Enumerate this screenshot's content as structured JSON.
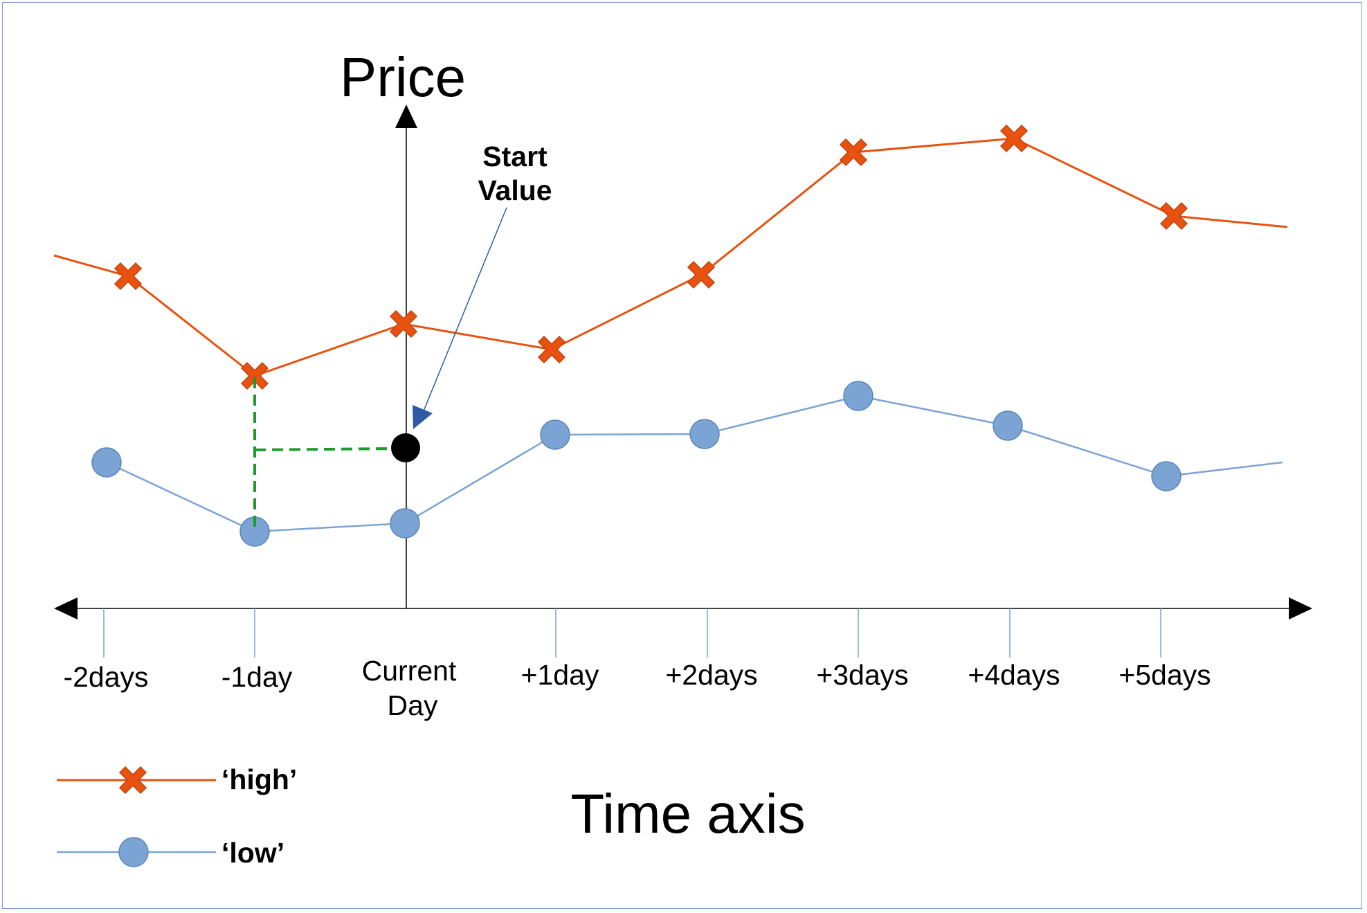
{
  "diagram": {
    "y_axis_title": "Price",
    "x_axis_title": "Time axis",
    "x_ticks": [
      "-2days",
      "-1day",
      "Current Day",
      "+1day",
      "+2days",
      "+3days",
      "+4days",
      "+5days"
    ],
    "annotation": {
      "line1": "Start",
      "line2": "Value"
    },
    "legend": [
      {
        "label": "‘high’",
        "marker": "x-marker",
        "color": "#e8510f"
      },
      {
        "label": "‘low’",
        "marker": "circle-marker",
        "color": "#7ba3d4"
      }
    ],
    "colors": {
      "high": "#e8510f",
      "low": "#7ba3d4",
      "start_point": "#000000",
      "projection": "#1f9b2e",
      "callout": "#2e5aa3",
      "axis": "#000000",
      "tick": "#7ba3d4",
      "frame": "#7f9cc6"
    }
  }
}
